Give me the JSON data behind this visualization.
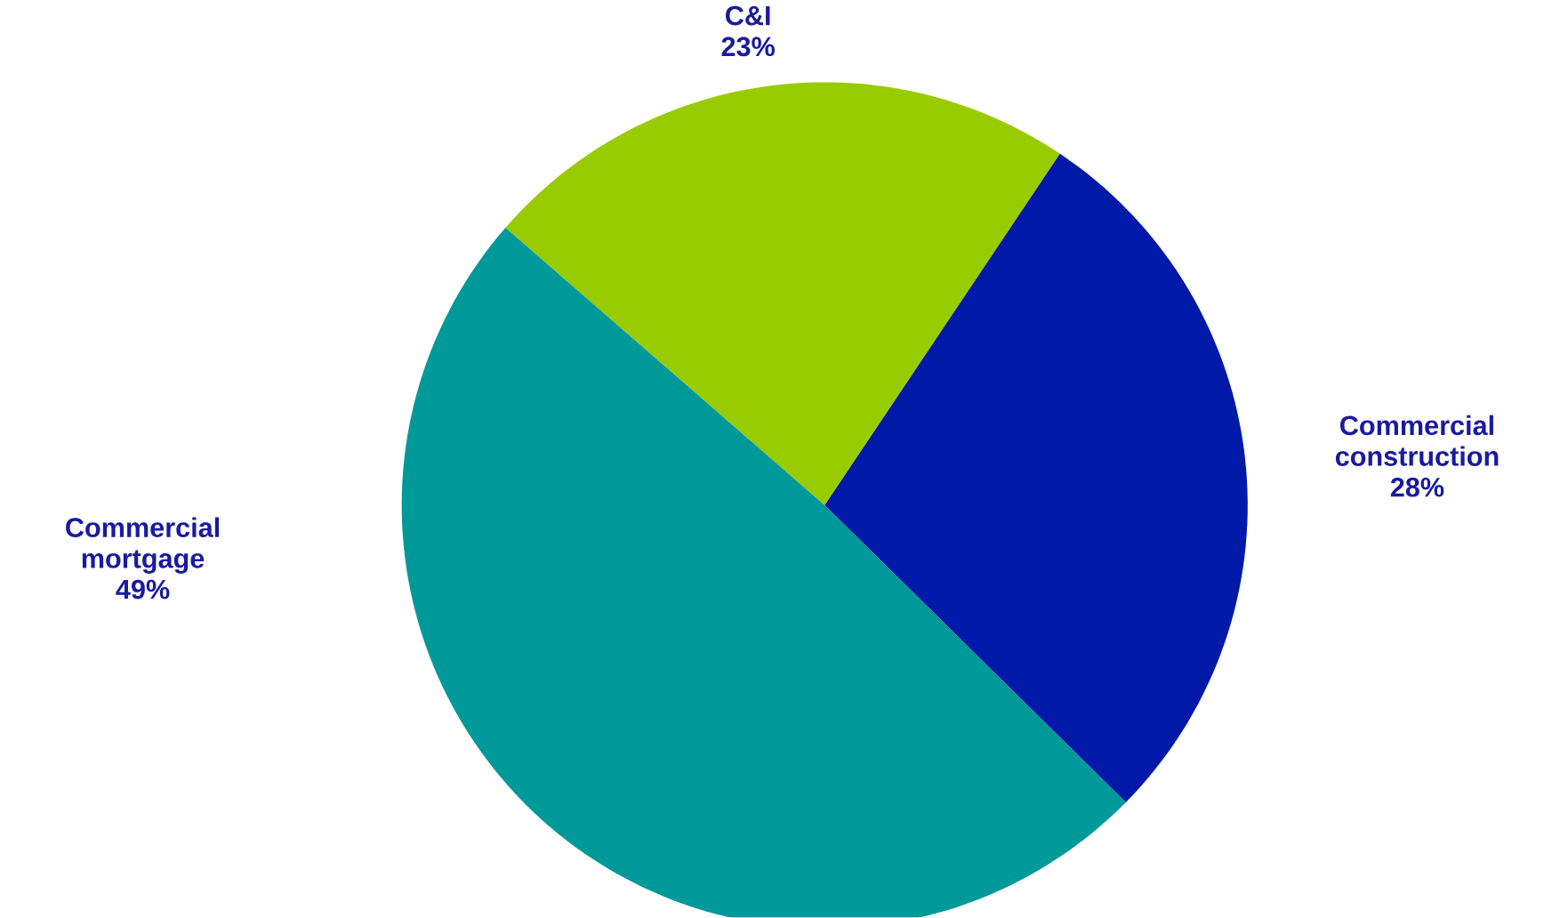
{
  "chart_data": {
    "type": "pie",
    "categories": [
      "C&I",
      "Commercial construction",
      "Commercial mortgage"
    ],
    "values": [
      23,
      28,
      49
    ],
    "value_labels": [
      "23%",
      "28%",
      "49%"
    ],
    "colors": [
      "#99cc00",
      "#0019a8",
      "#009999"
    ]
  }
}
